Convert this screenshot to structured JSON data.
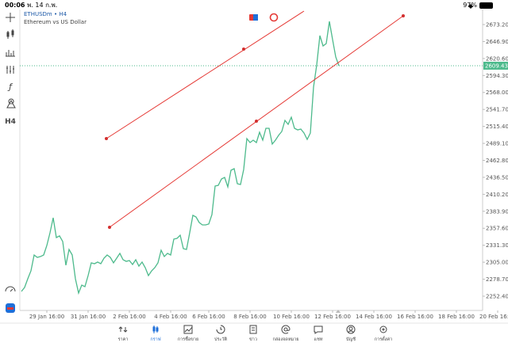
{
  "status_bar": {
    "time": "00:06",
    "date": "พ. 14 ก.พ.",
    "battery": "97%"
  },
  "symbol": {
    "name": "ETHUSDm • H4",
    "description": "Ethereum vs US Dollar"
  },
  "toolbar": {
    "function": "ƒ",
    "timeframe": "H4"
  },
  "chart_data": {
    "type": "line",
    "color": "#4dba8c",
    "values": [
      2259.8,
      2266.0,
      2279.4,
      2291.7,
      2316.2,
      2312.5,
      2313.8,
      2316.2,
      2330.9,
      2350.6,
      2373.9,
      2343.2,
      2345.7,
      2337.1,
      2300.3,
      2324.8,
      2316.2,
      2279.4,
      2257.3,
      2269.6,
      2267.2,
      2284.3,
      2304.0,
      2302.7,
      2305.2,
      2302.7,
      2311.3,
      2316.2,
      2312.5,
      2304.0,
      2311.3,
      2318.7,
      2308.9,
      2306.4,
      2307.6,
      2301.5,
      2308.9,
      2299.0,
      2305.2,
      2296.6,
      2284.3,
      2291.7,
      2296.6,
      2304.0,
      2323.6,
      2313.8,
      2318.7,
      2316.2,
      2340.8,
      2342.0,
      2346.9,
      2326.0,
      2324.8,
      2350.6,
      2377.6,
      2375.1,
      2366.5,
      2362.8,
      2362.8,
      2364.1,
      2378.8,
      2423.0,
      2424.2,
      2434.0,
      2436.4,
      2421.7,
      2447.5,
      2449.9,
      2426.6,
      2425.4,
      2448.7,
      2496.5,
      2490.4,
      2494.1,
      2490.4,
      2506.4,
      2494.1,
      2512.5,
      2512.5,
      2488.0,
      2494.1,
      2501.5,
      2507.6,
      2524.8,
      2518.6,
      2529.7,
      2512.5,
      2510.0,
      2511.3,
      2505.1,
      2495.3,
      2505.1,
      2576.3,
      2610.6,
      2656.0,
      2640.1,
      2643.8,
      2678.1,
      2649.9,
      2622.9,
      2609.4
    ],
    "xlim": [
      -0.5,
      145.25
    ],
    "xticks": [
      {
        "value": 8,
        "label": "29 Jan 16:00"
      },
      {
        "value": 21,
        "label": "31 Jan 16:00"
      },
      {
        "value": 34,
        "label": "2 Feb 16:00"
      },
      {
        "value": 47,
        "label": "4 Feb 16:00"
      },
      {
        "value": 59,
        "label": "6 Feb 16:00"
      },
      {
        "value": 72,
        "label": "8 Feb 16:00"
      },
      {
        "value": 85,
        "label": "10 Feb 16:00"
      },
      {
        "value": 98,
        "label": "12 Feb 16:00"
      },
      {
        "value": 111,
        "label": "14 Feb 16:00"
      },
      {
        "value": 124,
        "label": "16 Feb 16:00"
      },
      {
        "value": 137,
        "label": "18 Feb 16:00"
      },
      {
        "value": 150,
        "label": "20 Feb 16:00"
      }
    ],
    "ylim": [
      2230.3,
      2696.5
    ],
    "yticks": [
      {
        "value": 2673.2,
        "label": "2673.20"
      },
      {
        "value": 2646.9,
        "label": "2646.90"
      },
      {
        "value": 2620.6,
        "label": "2620.60"
      },
      {
        "value": 2594.3,
        "label": "2594.30"
      },
      {
        "value": 2568,
        "label": "2568.00"
      },
      {
        "value": 2541.7,
        "label": "2541.70"
      },
      {
        "value": 2515.4,
        "label": "2515.40"
      },
      {
        "value": 2489.1,
        "label": "2489.10"
      },
      {
        "value": 2462.8,
        "label": "2462.80"
      },
      {
        "value": 2436.5,
        "label": "2436.50"
      },
      {
        "value": 2410.2,
        "label": "2410.20"
      },
      {
        "value": 2383.9,
        "label": "2383.90"
      },
      {
        "value": 2357.6,
        "label": "2357.60"
      },
      {
        "value": 2331.3,
        "label": "2331.30"
      },
      {
        "value": 2305,
        "label": "2305.00"
      },
      {
        "value": 2278.7,
        "label": "2278.70"
      },
      {
        "value": 2252.4,
        "label": "2252.40"
      }
    ],
    "current_price": 2609.43
  },
  "tabs": [
    "ราคา",
    "กราฟ",
    "การซื้อขาย",
    "ประวัติ",
    "ข่าว",
    "กล่องจดหมาย",
    "แชท",
    "บัญชี",
    "การตั้งค่า"
  ]
}
